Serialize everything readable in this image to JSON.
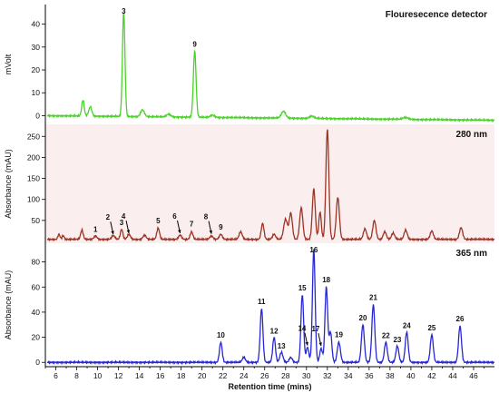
{
  "chart_data": [
    {
      "type": "line",
      "title": "Flouresecence detector",
      "ylabel": "mVolt",
      "xlabel": "",
      "ylim": [
        -3,
        47
      ],
      "yticks": [
        0,
        10,
        20,
        30,
        40
      ],
      "xlim": [
        5,
        48
      ],
      "color": "#4bd12a",
      "baseline": 0,
      "end_drift": -2,
      "peaks": [
        {
          "x": 8.6,
          "y": 7,
          "w": 0.12
        },
        {
          "x": 9.3,
          "y": 4,
          "w": 0.15
        },
        {
          "x": 12.5,
          "y": 46,
          "w": 0.12,
          "label": "3"
        },
        {
          "x": 14.3,
          "y": 3,
          "w": 0.18
        },
        {
          "x": 16.8,
          "y": 1.2,
          "w": 0.2
        },
        {
          "x": 19.3,
          "y": 29,
          "w": 0.13,
          "label": "9"
        },
        {
          "x": 21.0,
          "y": 1,
          "w": 0.2
        },
        {
          "x": 27.8,
          "y": 3,
          "w": 0.2
        },
        {
          "x": 30.5,
          "y": 1,
          "w": 0.2
        },
        {
          "x": 39.5,
          "y": 0.8,
          "w": 0.25
        }
      ]
    },
    {
      "type": "line",
      "title": "280 nm",
      "ylabel": "Absorbance (mAU)",
      "xlabel": "",
      "ylim": [
        0,
        270
      ],
      "yticks": [
        50,
        100,
        150,
        200,
        250
      ],
      "xlim": [
        5,
        48
      ],
      "color": "#9c3325",
      "baseline": 5,
      "end_drift": 0,
      "peaks": [
        {
          "x": 6.3,
          "y": 12,
          "w": 0.1
        },
        {
          "x": 6.7,
          "y": 9,
          "w": 0.1
        },
        {
          "x": 8.5,
          "y": 22,
          "w": 0.12
        },
        {
          "x": 9.8,
          "y": 8,
          "w": 0.15,
          "label": "1"
        },
        {
          "x": 11.5,
          "y": 9,
          "w": 0.15,
          "label": "2"
        },
        {
          "x": 12.3,
          "y": 24,
          "w": 0.12,
          "label": "3"
        },
        {
          "x": 13.0,
          "y": 12,
          "w": 0.15,
          "label": "4"
        },
        {
          "x": 14.5,
          "y": 10,
          "w": 0.15
        },
        {
          "x": 15.8,
          "y": 27,
          "w": 0.13,
          "label": "5"
        },
        {
          "x": 17.9,
          "y": 10,
          "w": 0.15,
          "label": "6"
        },
        {
          "x": 19.0,
          "y": 18,
          "w": 0.13,
          "label": "7"
        },
        {
          "x": 20.9,
          "y": 8,
          "w": 0.15,
          "label": "8"
        },
        {
          "x": 21.8,
          "y": 12,
          "w": 0.15,
          "label": "9"
        },
        {
          "x": 23.7,
          "y": 18,
          "w": 0.15
        },
        {
          "x": 25.8,
          "y": 38,
          "w": 0.13
        },
        {
          "x": 26.9,
          "y": 12,
          "w": 0.15
        },
        {
          "x": 28.0,
          "y": 48,
          "w": 0.18
        },
        {
          "x": 28.5,
          "y": 62,
          "w": 0.15
        },
        {
          "x": 29.5,
          "y": 75,
          "w": 0.15
        },
        {
          "x": 30.7,
          "y": 120,
          "w": 0.14
        },
        {
          "x": 31.3,
          "y": 65,
          "w": 0.12
        },
        {
          "x": 32.0,
          "y": 262,
          "w": 0.14
        },
        {
          "x": 33.0,
          "y": 100,
          "w": 0.15
        },
        {
          "x": 35.6,
          "y": 25,
          "w": 0.15
        },
        {
          "x": 36.5,
          "y": 45,
          "w": 0.15
        },
        {
          "x": 37.5,
          "y": 18,
          "w": 0.15
        },
        {
          "x": 38.3,
          "y": 15,
          "w": 0.15
        },
        {
          "x": 39.5,
          "y": 22,
          "w": 0.15
        },
        {
          "x": 42.0,
          "y": 20,
          "w": 0.15
        },
        {
          "x": 44.8,
          "y": 28,
          "w": 0.15
        }
      ],
      "arrows": [
        {
          "label": "2",
          "x": 11.5,
          "y": 9
        },
        {
          "label": "4",
          "x": 13.0,
          "y": 12
        },
        {
          "label": "6",
          "x": 17.9,
          "y": 10
        },
        {
          "label": "8",
          "x": 20.9,
          "y": 8
        }
      ]
    },
    {
      "type": "line",
      "title": "365 nm",
      "ylabel": "Absorbance (mAU)",
      "xlabel": "Retention time (mins)",
      "ylim": [
        -2,
        92
      ],
      "yticks": [
        0,
        20,
        40,
        60,
        80
      ],
      "xlim": [
        5,
        48
      ],
      "xticks": [
        6,
        8,
        10,
        12,
        14,
        16,
        18,
        20,
        22,
        24,
        26,
        28,
        30,
        32,
        34,
        36,
        38,
        40,
        42,
        44,
        46
      ],
      "color": "#2727d4",
      "baseline": 0,
      "end_drift": 0,
      "peaks": [
        {
          "x": 21.8,
          "y": 16,
          "w": 0.13,
          "label": "10"
        },
        {
          "x": 24.0,
          "y": 4,
          "w": 0.15
        },
        {
          "x": 25.7,
          "y": 43,
          "w": 0.13,
          "label": "11"
        },
        {
          "x": 26.9,
          "y": 20,
          "w": 0.13,
          "label": "12"
        },
        {
          "x": 27.6,
          "y": 8,
          "w": 0.15,
          "label": "13"
        },
        {
          "x": 28.5,
          "y": 4,
          "w": 0.15
        },
        {
          "x": 29.6,
          "y": 54,
          "w": 0.13,
          "label": "15"
        },
        {
          "x": 30.1,
          "y": 12,
          "w": 0.13,
          "label": "14"
        },
        {
          "x": 30.7,
          "y": 90,
          "w": 0.13,
          "label": "16"
        },
        {
          "x": 31.4,
          "y": 11,
          "w": 0.13,
          "label": "17"
        },
        {
          "x": 31.9,
          "y": 60,
          "w": 0.13,
          "label": "18"
        },
        {
          "x": 32.3,
          "y": 24,
          "w": 0.13
        },
        {
          "x": 33.1,
          "y": 16,
          "w": 0.15,
          "label": "19"
        },
        {
          "x": 35.4,
          "y": 30,
          "w": 0.14,
          "label": "20"
        },
        {
          "x": 36.4,
          "y": 46,
          "w": 0.14,
          "label": "21"
        },
        {
          "x": 37.6,
          "y": 16,
          "w": 0.14,
          "label": "22"
        },
        {
          "x": 38.7,
          "y": 13,
          "w": 0.14,
          "label": "23"
        },
        {
          "x": 39.6,
          "y": 24,
          "w": 0.14,
          "label": "24"
        },
        {
          "x": 42.0,
          "y": 22,
          "w": 0.14,
          "label": "25"
        },
        {
          "x": 44.7,
          "y": 29,
          "w": 0.14,
          "label": "26"
        }
      ],
      "arrows": [
        {
          "label": "14",
          "x": 30.1,
          "y": 12
        },
        {
          "label": "17",
          "x": 31.4,
          "y": 11
        }
      ]
    }
  ]
}
